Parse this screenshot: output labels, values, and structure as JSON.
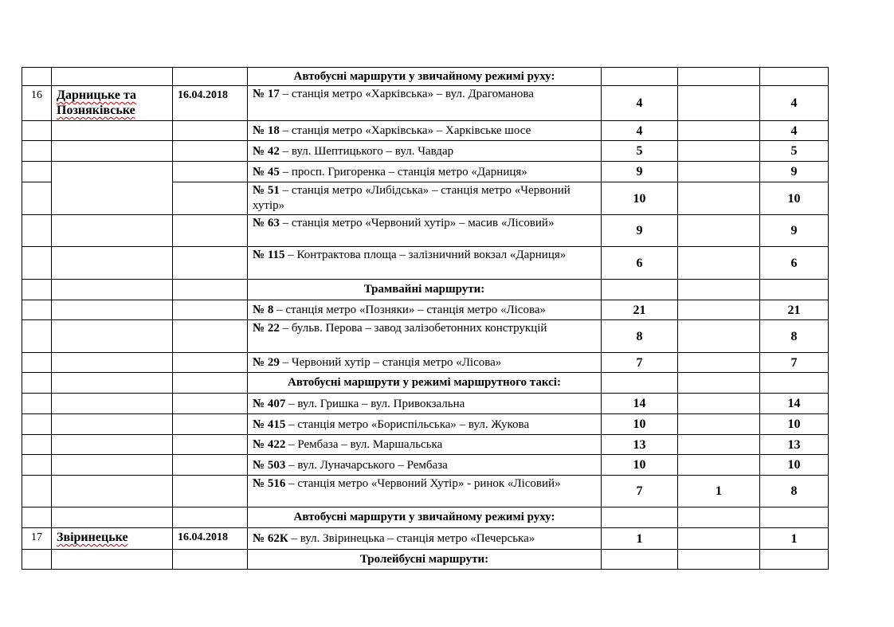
{
  "rows": [
    {
      "type": "header",
      "text": "Автобусні маршрути у звичайному режимі руху:"
    },
    {
      "no": "16",
      "area": "Дарницьке та Позняківське",
      "date": "16.04.2018",
      "route_no": "№ 17",
      "route": " – станція метро «Харківська» – вул. Драгоманова",
      "v1": "4",
      "v2": "",
      "v3": "4"
    },
    {
      "route_no": "№ 18",
      "route": " – станція метро «Харківська» – Харківське шосе",
      "v1": "4",
      "v2": "",
      "v3": "4"
    },
    {
      "route_no": "№ 42",
      "route": " – вул. Шептицького – вул. Чавдар",
      "v1": "5",
      "v2": "",
      "v3": "5"
    },
    {
      "route_no": "№ 45",
      "route": " – просп. Григоренка – станція метро «Дарниця»",
      "v1": "9",
      "v2": "",
      "v3": "9"
    },
    {
      "route_no": "№ 51",
      "route": " – станція метро «Либідська» – станція метро «Червоний хутір»",
      "v1": "10",
      "v2": "",
      "v3": "10"
    },
    {
      "route_no": "№ 63",
      "route": " – станція метро «Червоний хутір» – масив «Лісовий»",
      "v1": "9",
      "v2": "",
      "v3": "9"
    },
    {
      "route_no": "№ 115",
      "route": " – Контрактова площа – залізничний вокзал «Дарниця»",
      "v1": "6",
      "v2": "",
      "v3": "6"
    },
    {
      "type": "header",
      "text": "Трамвайні маршрути:"
    },
    {
      "route_no": "№ 8",
      "route": " – станція метро «Позняки» – станція метро «Лісова»",
      "v1": "21",
      "v2": "",
      "v3": "21"
    },
    {
      "route_no": "№ 22",
      "route": " – бульв. Перова – завод залізобетонних конструкцій",
      "v1": "8",
      "v2": "",
      "v3": "8"
    },
    {
      "route_no": "№ 29",
      "route": " – Червоний хутір – станція метро «Лісова»",
      "v1": "7",
      "v2": "",
      "v3": "7"
    },
    {
      "type": "header",
      "text": "Автобусні маршрути у режимі маршрутного таксі:"
    },
    {
      "route_no": "№ 407",
      "route": " – вул. Гришка – вул. Привокзальна",
      "v1": "14",
      "v2": "",
      "v3": "14"
    },
    {
      "route_no": "№ 415",
      "route": " – станція метро «Бориспільська» – вул. Жукова",
      "v1": "10",
      "v2": "",
      "v3": "10"
    },
    {
      "route_no": "№ 422",
      "route": " – Рембаза – вул. Маршальська",
      "v1": "13",
      "v2": "",
      "v3": "13"
    },
    {
      "route_no": "№ 503",
      "route": " – вул. Луначарського – Рембаза",
      "v1": "10",
      "v2": "",
      "v3": "10"
    },
    {
      "route_no": "№ 516",
      "route": " – станція метро «Червоний Хутір» - ринок «Лісовий»",
      "v1": "7",
      "v2": "1",
      "v3": "8"
    },
    {
      "type": "header",
      "text": "Автобусні маршрути у звичайному режимі руху:"
    },
    {
      "no": "17",
      "area": "Звіринецьке",
      "date": "16.04.2018",
      "route_no": "№ 62К",
      "route": " – вул. Звіринецька – станція метро «Печерська»",
      "v1": "1",
      "v2": "",
      "v3": "1"
    },
    {
      "type": "header",
      "text": "Тролейбусні маршрути:"
    }
  ]
}
